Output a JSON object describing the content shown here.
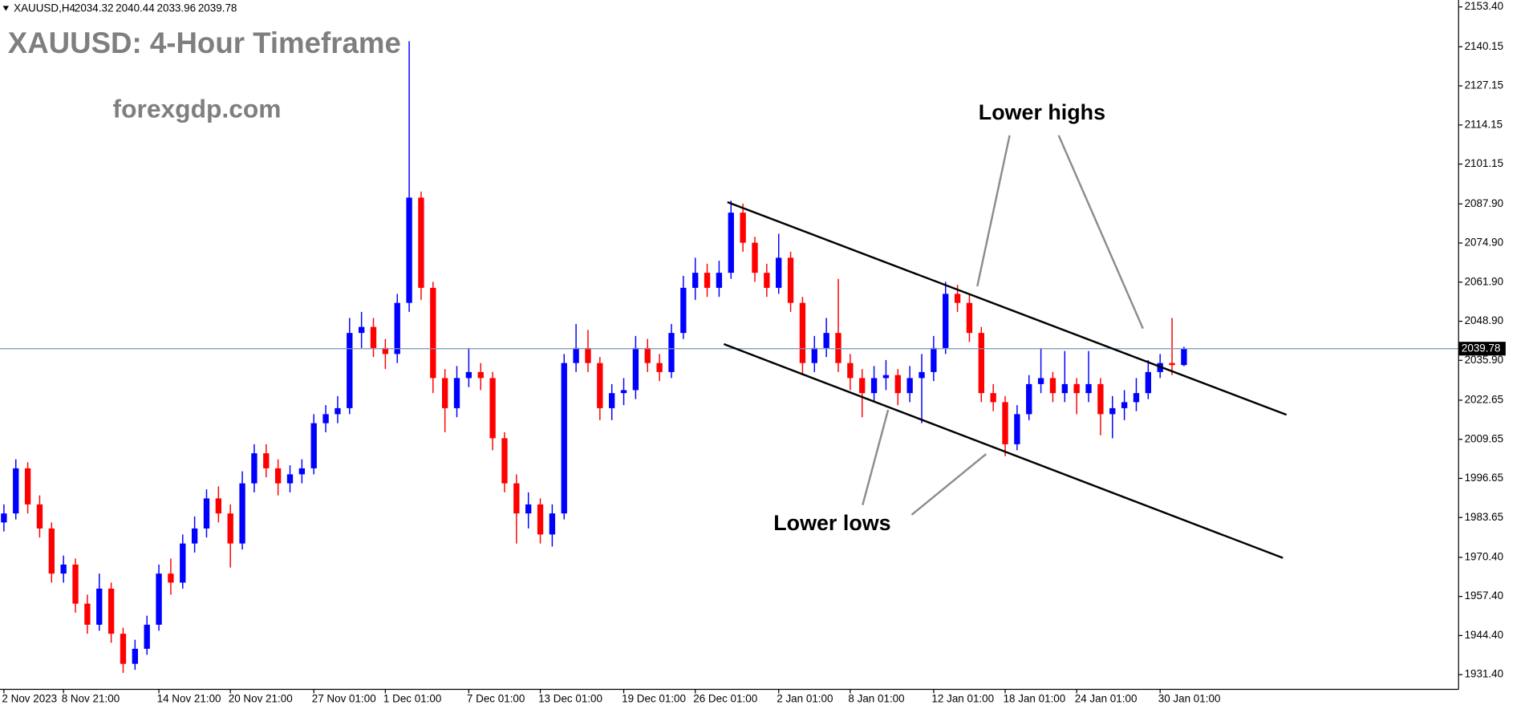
{
  "chart_data": {
    "type": "candlestick",
    "symbol": "XAUUSD,H4",
    "title": "XAUUSD: 4-Hour Timeframe",
    "subtitle": "forexgdp.com",
    "annotations": [
      "Lower highs",
      "Lower lows"
    ],
    "up_color": "#0000ff",
    "down_color": "#ff0000",
    "price_line_color": "#7a96b0",
    "ylim": [
      1926.5,
      2155.7
    ],
    "yticks": [
      {
        "value": 1931.4,
        "label": "1931.40"
      },
      {
        "value": 1944.4,
        "label": "1944.40"
      },
      {
        "value": 1957.4,
        "label": "1957.40"
      },
      {
        "value": 1970.4,
        "label": "1970.40"
      },
      1983.65,
      1996.65,
      2009.65,
      2022.65,
      {
        "value": 2035.9,
        "label": "2035.90"
      },
      {
        "value": 2048.9,
        "label": "2048.90"
      },
      {
        "value": 2061.9,
        "label": "2061.90"
      },
      {
        "value": 2074.9,
        "label": "2074.90"
      },
      {
        "value": 2087.9,
        "label": "2087.90"
      },
      2101.15,
      2114.15,
      2127.15,
      2140.15,
      {
        "value": 2153.4,
        "label": "2153.40"
      }
    ],
    "x": [
      "2 Nov 2023",
      null,
      null,
      null,
      null,
      "8 Nov 21:00",
      null,
      null,
      null,
      null,
      null,
      null,
      null,
      "14 Nov 21:00",
      null,
      null,
      null,
      null,
      null,
      "20 Nov 21:00",
      null,
      null,
      null,
      null,
      null,
      null,
      "27 Nov 01:00",
      null,
      null,
      null,
      null,
      null,
      "1 Dec 01:00",
      null,
      null,
      null,
      null,
      null,
      null,
      "7 Dec 01:00",
      null,
      null,
      null,
      null,
      null,
      "13 Dec 01:00",
      null,
      null,
      null,
      null,
      null,
      null,
      "19 Dec 01:00",
      null,
      null,
      null,
      null,
      null,
      "26 Dec 01:00",
      null,
      null,
      null,
      null,
      null,
      null,
      "2 Jan 01:00",
      null,
      null,
      null,
      null,
      null,
      "8 Jan 01:00",
      null,
      null,
      null,
      null,
      null,
      null,
      "12 Jan 01:00",
      null,
      null,
      null,
      null,
      null,
      "18 Jan 01:00",
      null,
      null,
      null,
      null,
      null,
      "24 Jan 01:00",
      null,
      null,
      null,
      null,
      null,
      null,
      "30 Jan 01:00",
      null,
      null
    ],
    "candles": [
      [
        1982,
        1988,
        1979,
        1985
      ],
      [
        1985,
        2003,
        1983,
        2000
      ],
      [
        2000,
        2002,
        1985,
        1988
      ],
      [
        1988,
        1991,
        1977,
        1980
      ],
      [
        1980,
        1982,
        1962,
        1965
      ],
      [
        1965,
        1971,
        1962,
        1968
      ],
      [
        1968,
        1970,
        1952,
        1955
      ],
      [
        1955,
        1958,
        1945,
        1948
      ],
      [
        1948,
        1965,
        1946,
        1960
      ],
      [
        1960,
        1962,
        1942,
        1945
      ],
      [
        1945,
        1947,
        1932,
        1935
      ],
      [
        1935,
        1943,
        1933,
        1940
      ],
      [
        1940,
        1951,
        1938,
        1948
      ],
      [
        1948,
        1968,
        1946,
        1965
      ],
      [
        1965,
        1970,
        1958,
        1962
      ],
      [
        1962,
        1978,
        1960,
        1975
      ],
      [
        1975,
        1984,
        1972,
        1980
      ],
      [
        1980,
        1993,
        1977,
        1990
      ],
      [
        1990,
        1994,
        1982,
        1985
      ],
      [
        1985,
        1988,
        1967,
        1975
      ],
      [
        1975,
        1999,
        1973,
        1995
      ],
      [
        1995,
        2008,
        1992,
        2005
      ],
      [
        2005,
        2008,
        1997,
        2000
      ],
      [
        2000,
        2003,
        1991,
        1995
      ],
      [
        1995,
        2001,
        1992,
        1998
      ],
      [
        1998,
        2003,
        1995,
        2000
      ],
      [
        2000,
        2018,
        1998,
        2015
      ],
      [
        2015,
        2021,
        2012,
        2018
      ],
      [
        2018,
        2024,
        2015,
        2020
      ],
      [
        2020,
        2050,
        2018,
        2045
      ],
      [
        2045,
        2052,
        2040,
        2047
      ],
      [
        2047,
        2050,
        2037,
        2040
      ],
      [
        2040,
        2043,
        2033,
        2038
      ],
      [
        2038,
        2058,
        2035,
        2055
      ],
      [
        2055,
        2142,
        2052,
        2090
      ],
      [
        2090,
        2092,
        2056,
        2060
      ],
      [
        2060,
        2062,
        2025,
        2030
      ],
      [
        2030,
        2033,
        2012,
        2020
      ],
      [
        2020,
        2034,
        2017,
        2030
      ],
      [
        2030,
        2040,
        2027,
        2032
      ],
      [
        2032,
        2035,
        2026,
        2030
      ],
      [
        2030,
        2032,
        2006,
        2010
      ],
      [
        2010,
        2012,
        1992,
        1995
      ],
      [
        1995,
        1998,
        1975,
        1985
      ],
      [
        1985,
        1992,
        1980,
        1988
      ],
      [
        1988,
        1990,
        1975,
        1978
      ],
      [
        1978,
        1988,
        1974,
        1985
      ],
      [
        1985,
        2038,
        1983,
        2035
      ],
      [
        2035,
        2048,
        2032,
        2040
      ],
      [
        2040,
        2046,
        2032,
        2035
      ],
      [
        2035,
        2037,
        2016,
        2020
      ],
      [
        2020,
        2028,
        2016,
        2025
      ],
      [
        2025,
        2030,
        2021,
        2026
      ],
      [
        2026,
        2044,
        2023,
        2040
      ],
      [
        2040,
        2043,
        2032,
        2035
      ],
      [
        2035,
        2038,
        2029,
        2032
      ],
      [
        2032,
        2048,
        2030,
        2045
      ],
      [
        2045,
        2064,
        2043,
        2060
      ],
      [
        2060,
        2070,
        2056,
        2065
      ],
      [
        2065,
        2068,
        2057,
        2060
      ],
      [
        2060,
        2069,
        2057,
        2065
      ],
      [
        2065,
        2089,
        2063,
        2085
      ],
      [
        2085,
        2088,
        2072,
        2075
      ],
      [
        2075,
        2077,
        2062,
        2065
      ],
      [
        2065,
        2068,
        2057,
        2060
      ],
      [
        2060,
        2078,
        2058,
        2070
      ],
      [
        2070,
        2072,
        2052,
        2055
      ],
      [
        2055,
        2057,
        2031,
        2035
      ],
      [
        2035,
        2044,
        2032,
        2040
      ],
      [
        2040,
        2050,
        2037,
        2045
      ],
      [
        2045,
        2063,
        2032,
        2035
      ],
      [
        2035,
        2038,
        2026,
        2030
      ],
      [
        2030,
        2033,
        2017,
        2025
      ],
      [
        2025,
        2034,
        2022,
        2030
      ],
      [
        2030,
        2036,
        2026,
        2031
      ],
      [
        2031,
        2033,
        2021,
        2025
      ],
      [
        2025,
        2034,
        2022,
        2030
      ],
      [
        2030,
        2038,
        2015,
        2032
      ],
      [
        2032,
        2044,
        2029,
        2040
      ],
      [
        2040,
        2062,
        2038,
        2058
      ],
      [
        2058,
        2061,
        2052,
        2055
      ],
      [
        2055,
        2058,
        2042,
        2045
      ],
      [
        2045,
        2047,
        2022,
        2025
      ],
      [
        2025,
        2028,
        2019,
        2022
      ],
      [
        2022,
        2024,
        2004,
        2008
      ],
      [
        2008,
        2021,
        2006,
        2018
      ],
      [
        2018,
        2031,
        2016,
        2028
      ],
      [
        2028,
        2040,
        2025,
        2030
      ],
      [
        2030,
        2032,
        2022,
        2025
      ],
      [
        2025,
        2039,
        2022,
        2028
      ],
      [
        2028,
        2030,
        2018,
        2025
      ],
      [
        2025,
        2039,
        2022,
        2028
      ],
      [
        2028,
        2030,
        2011,
        2018
      ],
      [
        2018,
        2024,
        2010,
        2020
      ],
      [
        2020,
        2026,
        2016,
        2022
      ],
      [
        2022,
        2030,
        2019,
        2025
      ],
      [
        2025,
        2036,
        2023,
        2032
      ],
      [
        2032,
        2038,
        2030,
        2035
      ],
      [
        2035,
        2050,
        2031,
        2034.32
      ],
      [
        2034.32,
        2040.44,
        2033.96,
        2039.78
      ]
    ],
    "trend_lines": [
      {
        "x": [
          60.7,
          107.6
        ],
        "y": [
          2088.5,
          2017.8
        ]
      },
      {
        "x": [
          60.4,
          107.3
        ],
        "y": [
          2041.3,
          1970.2
        ]
      }
    ]
  }
}
